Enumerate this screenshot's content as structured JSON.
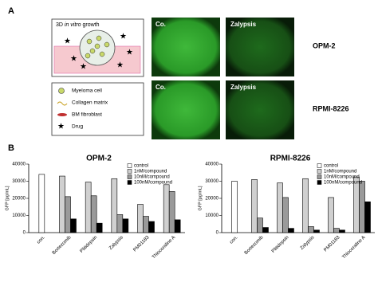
{
  "panel_a": {
    "label": "A",
    "schematic_title": [
      "3D ",
      "in vitro",
      " growth"
    ],
    "legend": [
      "Myeloma cell",
      "Collagen matrix",
      "BM fibroblast",
      "Drug"
    ],
    "column_labels": [
      "Co.",
      "Zalypsis"
    ],
    "row_labels": [
      "OPM-2",
      "RPMI-8226"
    ]
  },
  "panel_b_label": "B",
  "chart_data": [
    {
      "type": "bar",
      "title": "OPM-2",
      "y_label": "GFP [pg/mL]",
      "categories": [
        "con.",
        "Bortezomib",
        "Plitidepsin",
        "Zalypsis",
        "PM01183",
        "Thiocoraline A"
      ],
      "series": [
        {
          "name": "control",
          "color": "#ffffff",
          "values": [
            34000,
            null,
            null,
            null,
            null,
            null
          ]
        },
        {
          "name": "1nM/compound",
          "color": "#d0d0d0",
          "values": [
            null,
            33000,
            29500,
            31500,
            16500,
            28000
          ]
        },
        {
          "name": "10nM/compound",
          "color": "#9a9a9a",
          "values": [
            null,
            21000,
            21500,
            10500,
            9500,
            24000
          ]
        },
        {
          "name": "100nM/compound",
          "color": "#000000",
          "values": [
            null,
            8000,
            5500,
            8000,
            6500,
            7500
          ]
        }
      ],
      "ylim": [
        0,
        40000
      ],
      "yticks": [
        0,
        10000,
        20000,
        30000,
        40000
      ]
    },
    {
      "type": "bar",
      "title": "RPMI-8226",
      "y_label": "GFP [pg/mL]",
      "categories": [
        "con.",
        "Bortezomib",
        "Plitidepsin",
        "Zalypsis",
        "PM01183",
        "Thiocoraline A"
      ],
      "series": [
        {
          "name": "control",
          "color": "#ffffff",
          "values": [
            30000,
            null,
            null,
            null,
            null,
            null
          ]
        },
        {
          "name": "1nM/compound",
          "color": "#d0d0d0",
          "values": [
            null,
            31000,
            29000,
            31500,
            20500,
            32500
          ]
        },
        {
          "name": "10nM/compound",
          "color": "#9a9a9a",
          "values": [
            null,
            8500,
            20500,
            3500,
            2500,
            30000
          ]
        },
        {
          "name": "100nM/compound",
          "color": "#000000",
          "values": [
            null,
            3000,
            2500,
            1500,
            1500,
            18000
          ]
        }
      ],
      "ylim": [
        0,
        40000
      ],
      "yticks": [
        0,
        10000,
        20000,
        30000,
        40000
      ]
    }
  ]
}
